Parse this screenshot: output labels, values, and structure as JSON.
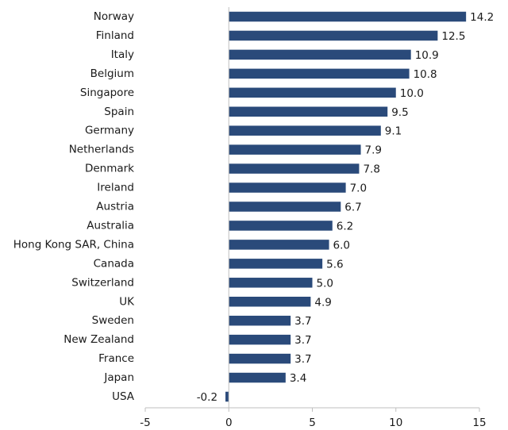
{
  "chart_data": {
    "type": "bar",
    "orientation": "horizontal",
    "categories": [
      "Norway",
      "Finland",
      "Italy",
      "Belgium",
      "Singapore",
      "Spain",
      "Germany",
      "Netherlands",
      "Denmark",
      "Ireland",
      "Austria",
      "Australia",
      "Hong Kong SAR, China",
      "Canada",
      "Switzerland",
      "UK",
      "Sweden",
      "New Zealand",
      "France",
      "Japan",
      "USA"
    ],
    "values": [
      14.2,
      12.5,
      10.9,
      10.8,
      10.0,
      9.5,
      9.1,
      7.9,
      7.8,
      7.0,
      6.7,
      6.2,
      6.0,
      5.6,
      5.0,
      4.9,
      3.7,
      3.7,
      3.7,
      3.4,
      -0.2
    ],
    "value_labels": [
      "14.2",
      "12.5",
      "10.9",
      "10.8",
      "10.0",
      "9.5",
      "9.1",
      "7.9",
      "7.8",
      "7.0",
      "6.7",
      "6.2",
      "6.0",
      "5.6",
      "5.0",
      "4.9",
      "3.7",
      "3.7",
      "3.7",
      "3.4",
      "-0.2"
    ],
    "xlim": [
      -5,
      15
    ],
    "xticks": [
      -5,
      0,
      5,
      10,
      15
    ],
    "xtick_labels": [
      "-5",
      "0",
      "5",
      "10",
      "15"
    ],
    "title": "",
    "xlabel": "",
    "ylabel": "",
    "grid": false,
    "legend": "none",
    "bar_color": "#2a4a7a",
    "axis_color": "#bfbfbf"
  }
}
